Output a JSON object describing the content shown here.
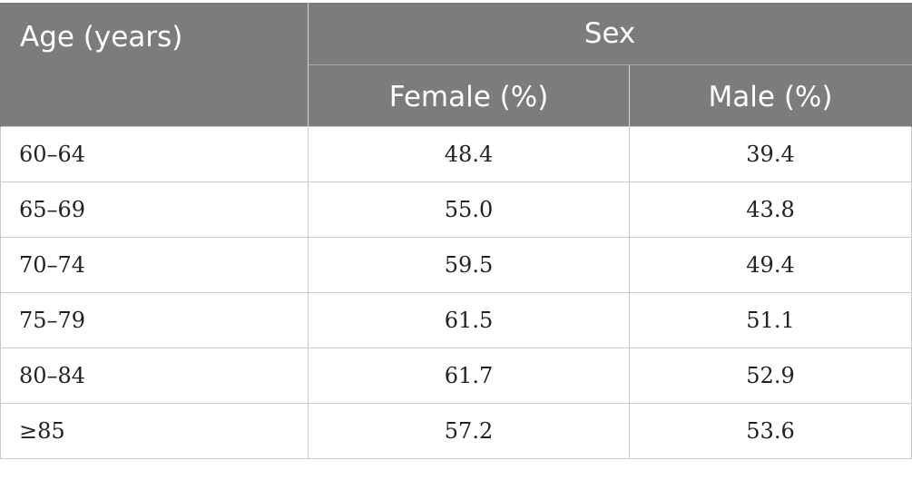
{
  "table": {
    "header": {
      "age_label": "Age (years)",
      "group_label": "Sex",
      "columns": [
        "Female (%)",
        "Male (%)"
      ]
    },
    "rows": [
      {
        "age": "60–64",
        "female": "48.4",
        "male": "39.4"
      },
      {
        "age": "65–69",
        "female": "55.0",
        "male": "43.8"
      },
      {
        "age": "70–74",
        "female": "59.5",
        "male": "49.4"
      },
      {
        "age": "75–79",
        "female": "61.5",
        "male": "51.1"
      },
      {
        "age": "80–84",
        "female": "61.7",
        "male": "52.9"
      },
      {
        "age": "≥85",
        "female": "57.2",
        "male": "53.6"
      }
    ]
  },
  "colors": {
    "header_background": "#7b7d7b",
    "header_text": "#ffffff",
    "grid_lines": "#c9c9c9"
  }
}
